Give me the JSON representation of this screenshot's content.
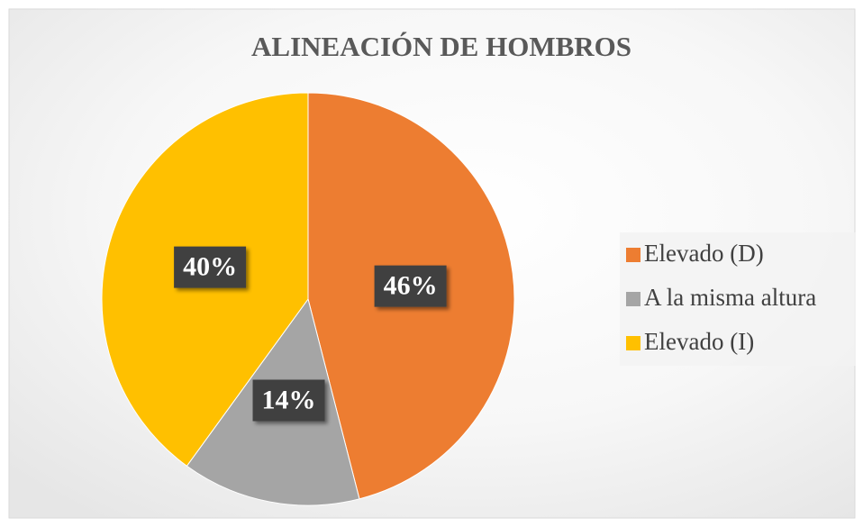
{
  "chart_data": {
    "type": "pie",
    "title": "ALINEACIÓN DE HOMBROS",
    "categories": [
      "Elevado (D)",
      "A la misma altura",
      "Elevado (I)"
    ],
    "values": [
      46,
      14,
      40
    ],
    "value_labels": [
      "46%",
      "14%",
      "40%"
    ],
    "colors": [
      "#ed7d31",
      "#a5a5a5",
      "#ffc000"
    ],
    "legend": "right"
  }
}
